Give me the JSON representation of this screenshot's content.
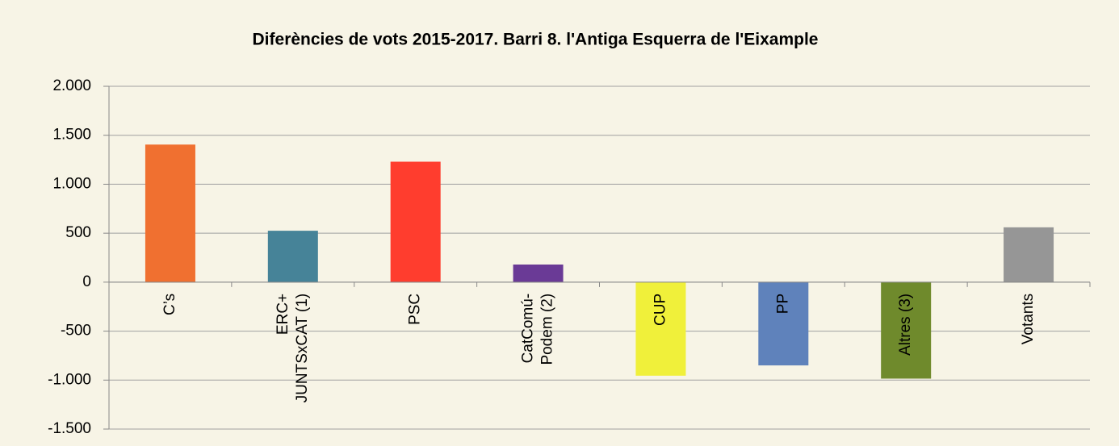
{
  "chart_data": {
    "type": "bar",
    "title": "Diferències de vots 2015-2017. Barri  8. l'Antiga Esquerra de l'Eixample",
    "categories": [
      "C’s",
      "ERC+\nJUNTSxCAT (1)",
      "PSC",
      "CatComú-\nPodem (2)",
      "CUP",
      "PP",
      "Altres (3)",
      "Votants"
    ],
    "values": [
      1405,
      525,
      1230,
      180,
      -955,
      -850,
      -985,
      560
    ],
    "colors": [
      "#f07030",
      "#468398",
      "#ff3d2e",
      "#6a3a96",
      "#f0f03a",
      "#5f82bb",
      "#6f8a2c",
      "#969696"
    ],
    "ylim": [
      -1500,
      2000
    ],
    "yticks": [
      {
        "value": -1500,
        "label": "-1.500"
      },
      {
        "value": -1000,
        "label": "-1.000"
      },
      -500,
      0,
      500,
      {
        "value": 1000,
        "label": "1.000"
      },
      {
        "value": 1500,
        "label": "1.500"
      },
      {
        "value": 2000,
        "label": "2.000"
      }
    ],
    "grid": true
  }
}
